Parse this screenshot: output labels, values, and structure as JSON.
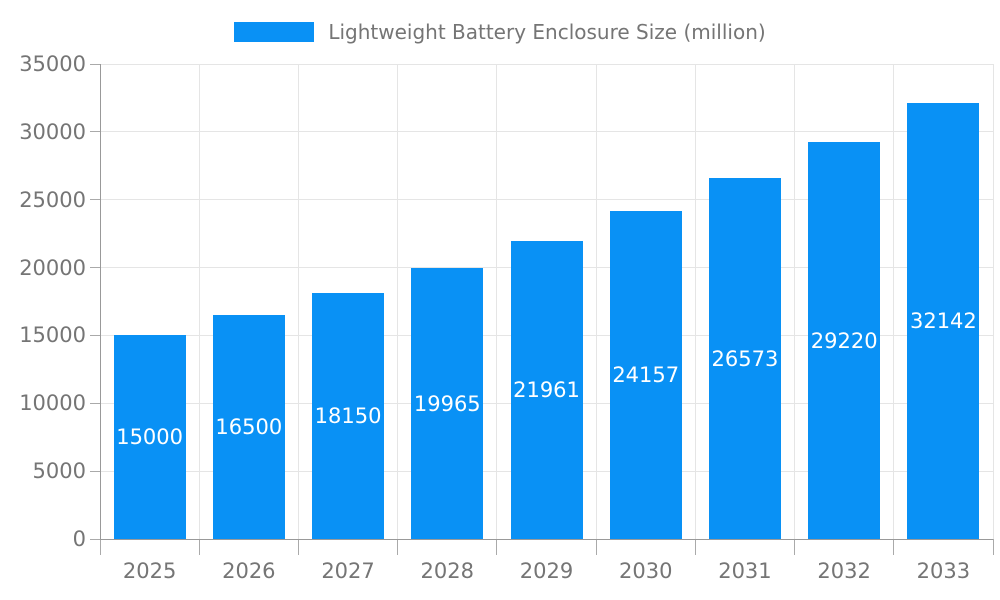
{
  "chart_data": {
    "type": "bar",
    "title": "Lightweight Battery Enclosure Size (million)",
    "categories": [
      "2025",
      "2026",
      "2027",
      "2028",
      "2029",
      "2030",
      "2031",
      "2032",
      "2033"
    ],
    "series": [
      {
        "name": "Lightweight Battery Enclosure Size (million)",
        "values": [
          15000,
          16500,
          18150,
          19965,
          21961,
          24157,
          26573,
          29220,
          32142
        ]
      }
    ],
    "xlabel": "",
    "ylabel": "",
    "ylim": [
      0,
      35000
    ],
    "yticks": [
      0,
      5000,
      10000,
      15000,
      20000,
      25000,
      30000,
      35000
    ],
    "grid": true,
    "legend_position": "top-center",
    "bar_value_labels": "inside-center-white"
  },
  "legend": {
    "label": "Lightweight Battery Enclosure Size (million)"
  },
  "colors": {
    "bar": "#0991f5",
    "bar_label_text": "#ffffff",
    "axis_line": "#999999",
    "tick": "#aaaaaa",
    "gridline": "#e5e5e5",
    "axis_text": "#757575",
    "legend_text": "#757575",
    "background": "#ffffff"
  }
}
